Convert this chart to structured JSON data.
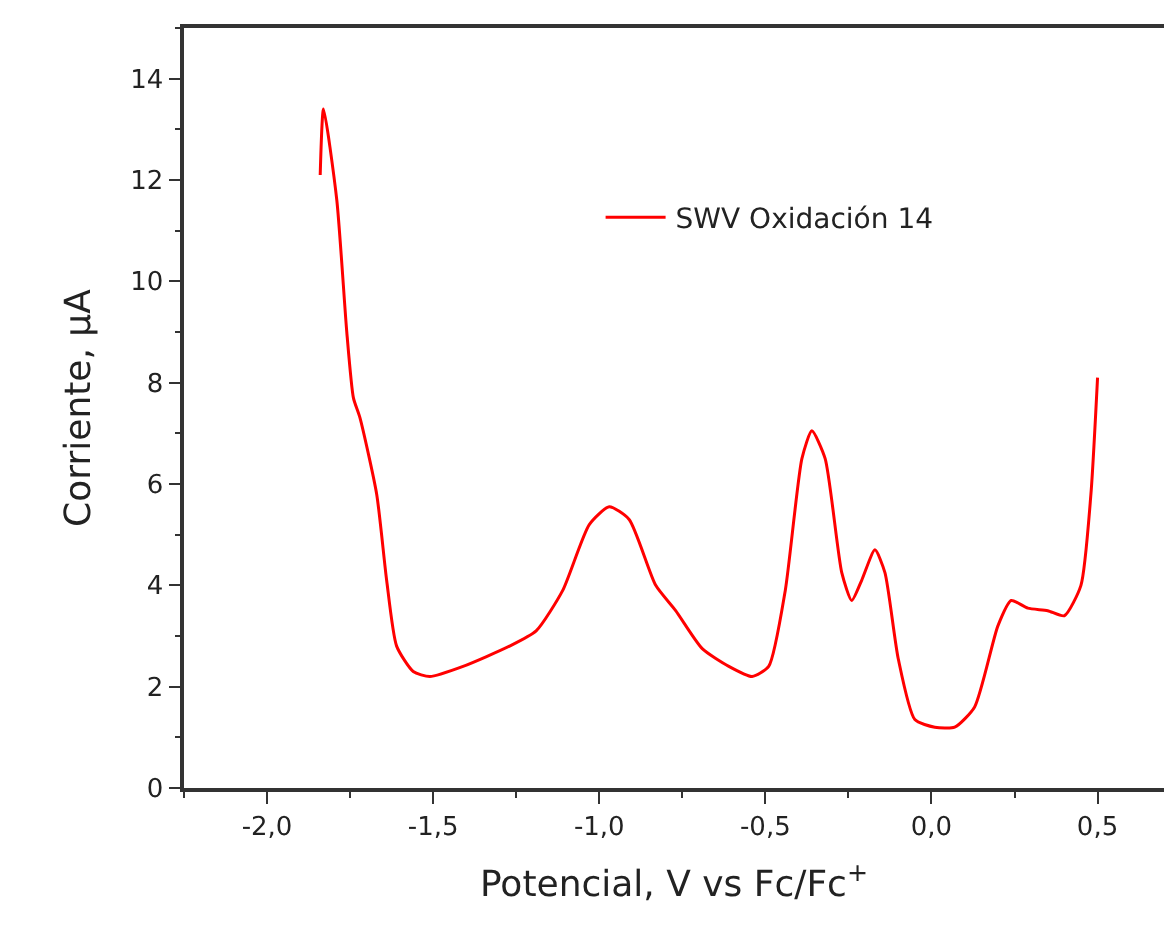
{
  "chart_data": {
    "type": "line",
    "xlabel": "Potencial, V vs Fc/Fc$^{+}$",
    "ylabel": "Corriente, µA",
    "xlim": [
      -2.25,
      0.7
    ],
    "xticks": [
      {
        "value": -2.0,
        "label": "-2,0"
      },
      {
        "value": -1.5,
        "label": "-1,5"
      },
      {
        "value": -1.0,
        "label": "-1,0"
      },
      {
        "value": -0.5,
        "label": "-0,5"
      },
      {
        "value": 0.0,
        "label": "0,0"
      },
      {
        "value": 0.5,
        "label": "0,5"
      }
    ],
    "ylim": [
      0,
      15
    ],
    "yticks": [
      0,
      2,
      4,
      6,
      8,
      10,
      12,
      14
    ],
    "legend": "top right",
    "line_style": "solid",
    "marker": "none",
    "series": [
      {
        "name": "SWV Oxidación 14",
        "color": "#ff0000",
        "x": [
          -1.84,
          -1.83,
          -1.79,
          -1.76,
          -1.74,
          -1.72,
          -1.67,
          -1.64,
          -1.61,
          -1.56,
          -1.51,
          -1.41,
          -1.27,
          -1.19,
          -1.11,
          -1.03,
          -0.97,
          -0.91,
          -0.83,
          -0.77,
          -0.69,
          -0.61,
          -0.54,
          -0.49,
          -0.44,
          -0.39,
          -0.36,
          -0.32,
          -0.27,
          -0.24,
          -0.21,
          -0.17,
          -0.14,
          -0.1,
          -0.05,
          0.01,
          0.07,
          0.13,
          0.2,
          0.24,
          0.29,
          0.35,
          0.4,
          0.45,
          0.48,
          0.5
        ],
        "values": [
          12.1,
          13.4,
          11.6,
          9.0,
          7.7,
          7.3,
          5.8,
          4.1,
          2.8,
          2.3,
          2.2,
          2.4,
          2.8,
          3.1,
          3.9,
          5.2,
          5.55,
          5.3,
          4.0,
          3.5,
          2.75,
          2.4,
          2.2,
          2.4,
          3.9,
          6.5,
          7.05,
          6.5,
          4.25,
          3.7,
          4.1,
          4.7,
          4.25,
          2.55,
          1.35,
          1.2,
          1.2,
          1.6,
          3.2,
          3.7,
          3.55,
          3.5,
          3.4,
          4.0,
          5.8,
          8.1
        ]
      }
    ]
  }
}
